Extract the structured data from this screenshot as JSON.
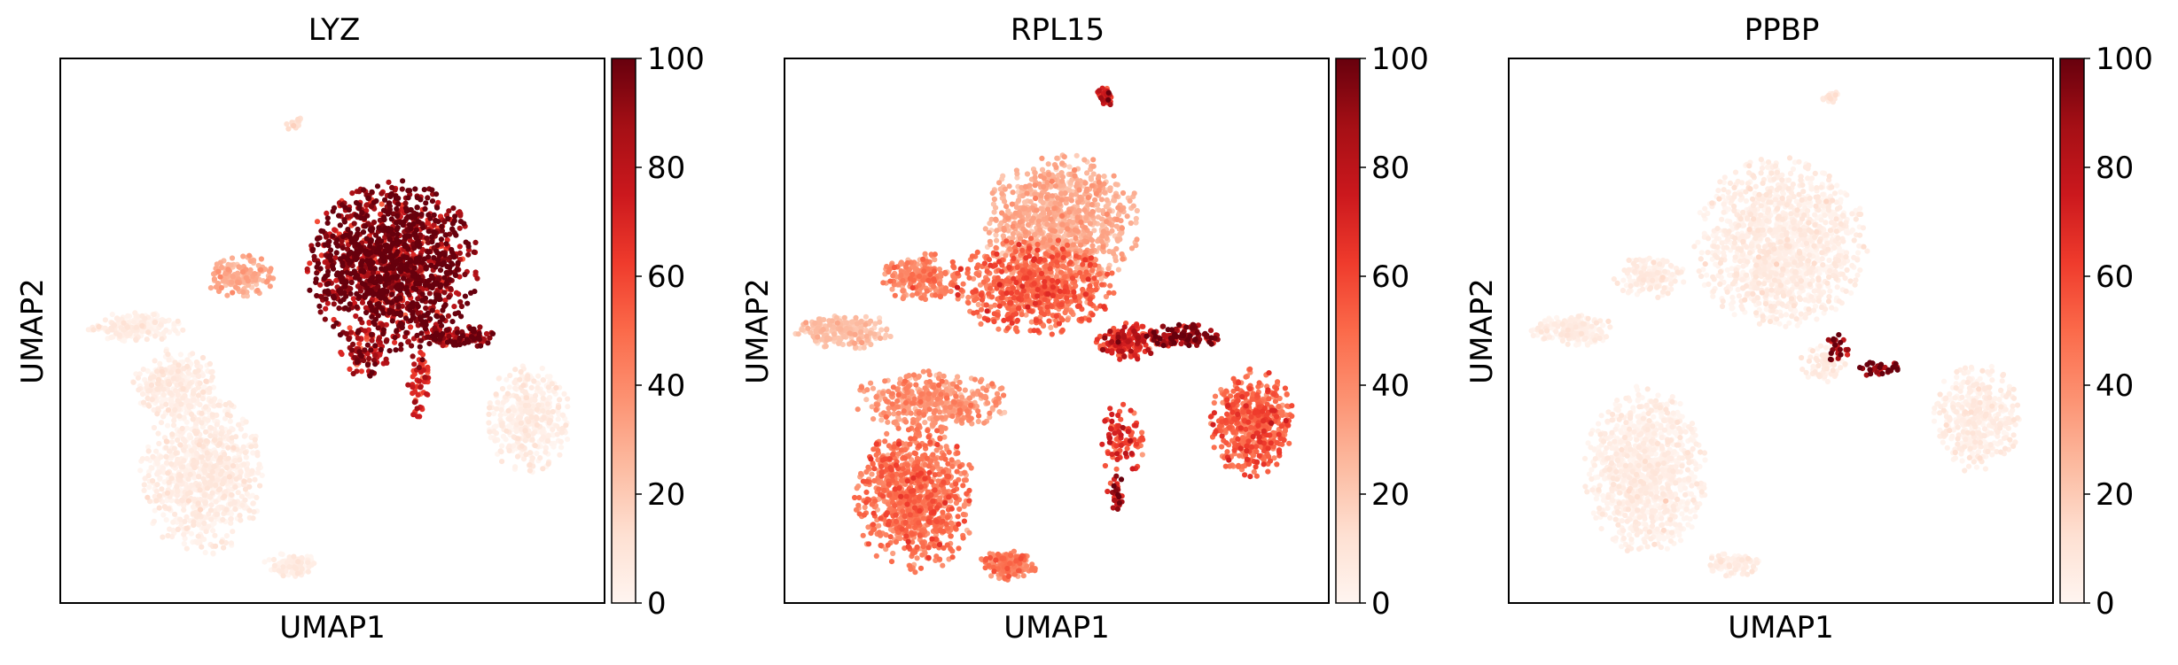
{
  "chart_data": [
    {
      "type": "scatter",
      "title": "LYZ",
      "xlabel": "UMAP1",
      "ylabel": "UMAP2",
      "colorbar": {
        "min": 0,
        "max": 100,
        "ticks": [
          "0",
          "20",
          "40",
          "60",
          "80",
          "100"
        ],
        "colormap": "Reds"
      },
      "grid": false,
      "clusters": [
        {
          "cx": 0.43,
          "cy": 0.88,
          "rx": 0.015,
          "ry": 0.012,
          "n": 18,
          "value": 12
        },
        {
          "cx": 0.61,
          "cy": 0.62,
          "rx": 0.14,
          "ry": 0.14,
          "n": 1400,
          "value": 95
        },
        {
          "cx": 0.33,
          "cy": 0.6,
          "rx": 0.06,
          "ry": 0.035,
          "n": 160,
          "value": 28
        },
        {
          "cx": 0.14,
          "cy": 0.505,
          "rx": 0.08,
          "ry": 0.025,
          "n": 190,
          "value": 3
        },
        {
          "cx": 0.26,
          "cy": 0.235,
          "rx": 0.1,
          "ry": 0.13,
          "n": 900,
          "value": 3
        },
        {
          "cx": 0.21,
          "cy": 0.4,
          "rx": 0.07,
          "ry": 0.06,
          "n": 320,
          "value": 3
        },
        {
          "cx": 0.425,
          "cy": 0.07,
          "rx": 0.045,
          "ry": 0.02,
          "n": 110,
          "value": 3
        },
        {
          "cx": 0.86,
          "cy": 0.34,
          "rx": 0.07,
          "ry": 0.09,
          "n": 420,
          "value": 3
        },
        {
          "cx": 0.66,
          "cy": 0.4,
          "rx": 0.02,
          "ry": 0.06,
          "n": 60,
          "value": 70
        },
        {
          "cx": 0.73,
          "cy": 0.49,
          "rx": 0.07,
          "ry": 0.02,
          "n": 120,
          "value": 88
        },
        {
          "cx": 0.56,
          "cy": 0.46,
          "rx": 0.04,
          "ry": 0.04,
          "n": 80,
          "value": 80
        }
      ]
    },
    {
      "type": "scatter",
      "title": "RPL15",
      "xlabel": "UMAP1",
      "ylabel": "UMAP2",
      "colorbar": {
        "min": 0,
        "max": 100,
        "ticks": [
          "0",
          "20",
          "40",
          "60",
          "80",
          "100"
        ],
        "colormap": "Reds"
      },
      "grid": false,
      "clusters": [
        {
          "cx": 0.59,
          "cy": 0.93,
          "rx": 0.015,
          "ry": 0.015,
          "n": 40,
          "value": 65
        },
        {
          "cx": 0.51,
          "cy": 0.7,
          "rx": 0.13,
          "ry": 0.11,
          "n": 900,
          "value": 28
        },
        {
          "cx": 0.46,
          "cy": 0.58,
          "rx": 0.13,
          "ry": 0.08,
          "n": 700,
          "value": 48
        },
        {
          "cx": 0.63,
          "cy": 0.48,
          "rx": 0.05,
          "ry": 0.03,
          "n": 180,
          "value": 65
        },
        {
          "cx": 0.73,
          "cy": 0.49,
          "rx": 0.07,
          "ry": 0.02,
          "n": 120,
          "value": 88
        },
        {
          "cx": 0.25,
          "cy": 0.6,
          "rx": 0.07,
          "ry": 0.04,
          "n": 220,
          "value": 40
        },
        {
          "cx": 0.11,
          "cy": 0.5,
          "rx": 0.08,
          "ry": 0.03,
          "n": 220,
          "value": 22
        },
        {
          "cx": 0.27,
          "cy": 0.37,
          "rx": 0.13,
          "ry": 0.05,
          "n": 420,
          "value": 35
        },
        {
          "cx": 0.24,
          "cy": 0.19,
          "rx": 0.1,
          "ry": 0.12,
          "n": 900,
          "value": 45
        },
        {
          "cx": 0.41,
          "cy": 0.07,
          "rx": 0.05,
          "ry": 0.025,
          "n": 160,
          "value": 42
        },
        {
          "cx": 0.86,
          "cy": 0.33,
          "rx": 0.07,
          "ry": 0.09,
          "n": 520,
          "value": 50
        },
        {
          "cx": 0.62,
          "cy": 0.3,
          "rx": 0.04,
          "ry": 0.06,
          "n": 90,
          "value": 60
        },
        {
          "cx": 0.61,
          "cy": 0.2,
          "rx": 0.015,
          "ry": 0.03,
          "n": 30,
          "value": 85
        }
      ]
    },
    {
      "type": "scatter",
      "title": "PPBP",
      "xlabel": "UMAP1",
      "ylabel": "UMAP2",
      "colorbar": {
        "min": 0,
        "max": 100,
        "ticks": [
          "0",
          "20",
          "40",
          "60",
          "80",
          "100"
        ],
        "colormap": "Reds"
      },
      "grid": false,
      "clusters": [
        {
          "cx": 0.59,
          "cy": 0.93,
          "rx": 0.015,
          "ry": 0.012,
          "n": 18,
          "value": 8
        },
        {
          "cx": 0.5,
          "cy": 0.66,
          "rx": 0.14,
          "ry": 0.14,
          "n": 1400,
          "value": 3
        },
        {
          "cx": 0.26,
          "cy": 0.6,
          "rx": 0.06,
          "ry": 0.035,
          "n": 160,
          "value": 3
        },
        {
          "cx": 0.12,
          "cy": 0.5,
          "rx": 0.07,
          "ry": 0.025,
          "n": 190,
          "value": 3
        },
        {
          "cx": 0.25,
          "cy": 0.24,
          "rx": 0.1,
          "ry": 0.14,
          "n": 1100,
          "value": 2
        },
        {
          "cx": 0.41,
          "cy": 0.07,
          "rx": 0.045,
          "ry": 0.02,
          "n": 110,
          "value": 2
        },
        {
          "cx": 0.86,
          "cy": 0.34,
          "rx": 0.07,
          "ry": 0.09,
          "n": 420,
          "value": 3
        },
        {
          "cx": 0.58,
          "cy": 0.44,
          "rx": 0.04,
          "ry": 0.03,
          "n": 80,
          "value": 4
        },
        {
          "cx": 0.605,
          "cy": 0.47,
          "rx": 0.02,
          "ry": 0.025,
          "n": 25,
          "value": 92
        },
        {
          "cx": 0.68,
          "cy": 0.43,
          "rx": 0.045,
          "ry": 0.012,
          "n": 30,
          "value": 97
        }
      ]
    }
  ]
}
